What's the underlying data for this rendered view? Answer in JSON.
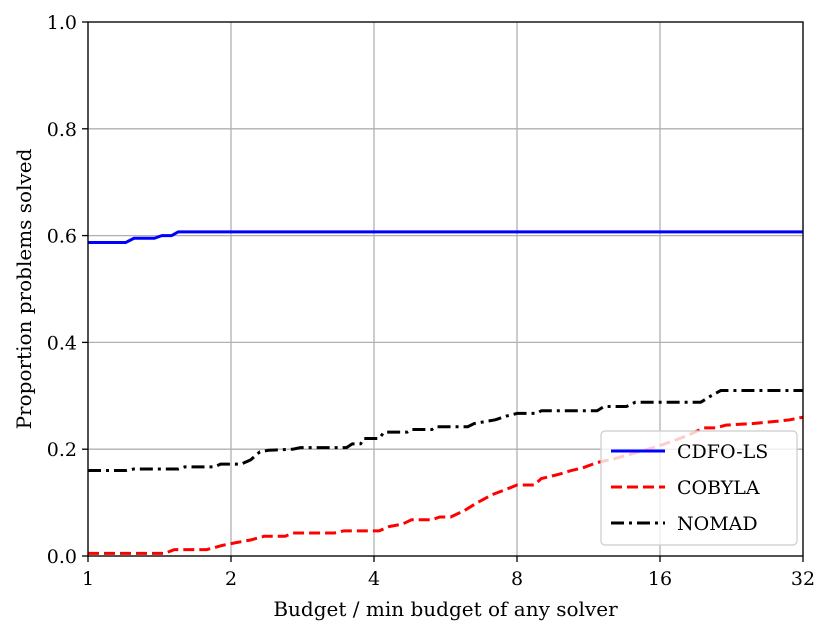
{
  "chart_data": {
    "type": "line",
    "title": "",
    "xlabel": "Budget / min budget of any solver",
    "ylabel": "Proportion problems solved",
    "xscale": "log2",
    "xlim": [
      1,
      32
    ],
    "ylim": [
      0,
      1
    ],
    "x_ticks": [
      1,
      2,
      4,
      8,
      16,
      32
    ],
    "x_tick_labels": [
      "1",
      "2",
      "4",
      "8",
      "16",
      "32"
    ],
    "y_ticks": [
      0,
      0.2,
      0.4,
      0.6,
      0.8,
      1.0
    ],
    "y_tick_labels": [
      "0.0",
      "0.2",
      "0.4",
      "0.6",
      "0.8",
      "1.0"
    ],
    "grid": true,
    "legend_position": "lower-right",
    "series": [
      {
        "name": "CDFO-LS",
        "color": "#0000ff",
        "style": "solid",
        "points": [
          [
            1,
            0.587
          ],
          [
            1.2,
            0.587
          ],
          [
            1.25,
            0.595
          ],
          [
            1.38,
            0.595
          ],
          [
            1.43,
            0.6
          ],
          [
            1.5,
            0.6
          ],
          [
            1.55,
            0.607
          ],
          [
            32,
            0.607
          ]
        ]
      },
      {
        "name": "COBYLA",
        "color": "#ff0000",
        "style": "dashed",
        "points": [
          [
            1,
            0.005
          ],
          [
            1.45,
            0.005
          ],
          [
            1.52,
            0.012
          ],
          [
            1.78,
            0.012
          ],
          [
            1.92,
            0.02
          ],
          [
            2.05,
            0.025
          ],
          [
            2.2,
            0.03
          ],
          [
            2.35,
            0.037
          ],
          [
            2.6,
            0.037
          ],
          [
            2.7,
            0.043
          ],
          [
            3.3,
            0.043
          ],
          [
            3.45,
            0.047
          ],
          [
            4.1,
            0.047
          ],
          [
            4.3,
            0.055
          ],
          [
            4.6,
            0.06
          ],
          [
            4.8,
            0.068
          ],
          [
            5.3,
            0.068
          ],
          [
            5.5,
            0.073
          ],
          [
            5.8,
            0.073
          ],
          [
            6.2,
            0.085
          ],
          [
            6.6,
            0.1
          ],
          [
            7.1,
            0.115
          ],
          [
            7.6,
            0.125
          ],
          [
            8.0,
            0.133
          ],
          [
            8.7,
            0.133
          ],
          [
            9.0,
            0.145
          ],
          [
            9.8,
            0.153
          ],
          [
            10.4,
            0.16
          ],
          [
            11.0,
            0.165
          ],
          [
            11.8,
            0.175
          ],
          [
            12.8,
            0.182
          ],
          [
            13.8,
            0.19
          ],
          [
            14.8,
            0.198
          ],
          [
            15.8,
            0.205
          ],
          [
            17.0,
            0.215
          ],
          [
            18.2,
            0.225
          ],
          [
            19.8,
            0.24
          ],
          [
            21.0,
            0.24
          ],
          [
            22.0,
            0.245
          ],
          [
            25.0,
            0.248
          ],
          [
            28.0,
            0.252
          ],
          [
            30.0,
            0.255
          ],
          [
            32,
            0.26
          ]
        ]
      },
      {
        "name": "NOMAD",
        "color": "#000000",
        "style": "dashdot",
        "points": [
          [
            1,
            0.16
          ],
          [
            1.2,
            0.16
          ],
          [
            1.25,
            0.163
          ],
          [
            1.55,
            0.163
          ],
          [
            1.6,
            0.167
          ],
          [
            1.85,
            0.167
          ],
          [
            1.9,
            0.172
          ],
          [
            2.1,
            0.172
          ],
          [
            2.2,
            0.18
          ],
          [
            2.3,
            0.195
          ],
          [
            2.4,
            0.198
          ],
          [
            2.7,
            0.2
          ],
          [
            2.8,
            0.203
          ],
          [
            3.5,
            0.203
          ],
          [
            3.6,
            0.21
          ],
          [
            3.75,
            0.21
          ],
          [
            3.8,
            0.22
          ],
          [
            4.1,
            0.22
          ],
          [
            4.2,
            0.232
          ],
          [
            4.7,
            0.232
          ],
          [
            4.8,
            0.237
          ],
          [
            5.3,
            0.237
          ],
          [
            5.4,
            0.242
          ],
          [
            6.3,
            0.242
          ],
          [
            6.5,
            0.248
          ],
          [
            7.2,
            0.255
          ],
          [
            7.6,
            0.262
          ],
          [
            8.0,
            0.267
          ],
          [
            8.8,
            0.267
          ],
          [
            9.0,
            0.272
          ],
          [
            11.8,
            0.272
          ],
          [
            12.2,
            0.28
          ],
          [
            13.6,
            0.28
          ],
          [
            14.2,
            0.288
          ],
          [
            19.5,
            0.288
          ],
          [
            20.5,
            0.3
          ],
          [
            21.5,
            0.31
          ],
          [
            32,
            0.31
          ]
        ]
      }
    ]
  }
}
